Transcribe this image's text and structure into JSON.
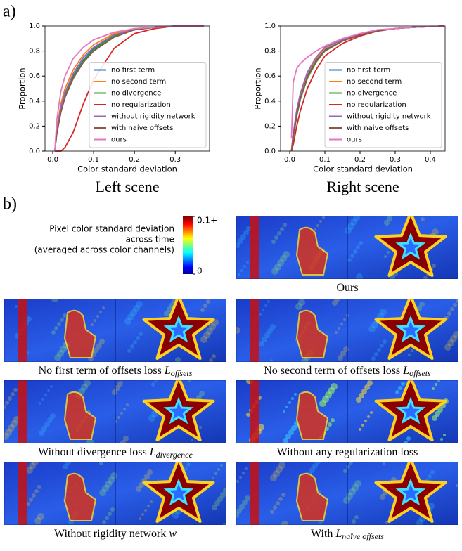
{
  "panel_a": {
    "label": "a)"
  },
  "chart_data": [
    {
      "type": "line",
      "caption": "Left scene",
      "xlabel": "Color standard deviation",
      "ylabel": "Proportion",
      "xlim": [
        -0.019,
        0.384
      ],
      "ylim": [
        0,
        1
      ],
      "xticks": [
        {
          "value": 0,
          "label": "0.0"
        },
        0.1,
        0.2,
        0.3
      ],
      "yticks": [
        {
          "value": 0,
          "label": "0.0"
        },
        0.2,
        0.4,
        0.6,
        0.8,
        {
          "value": 1,
          "label": "1.0"
        }
      ],
      "legend": "lower right",
      "x": [
        0.005,
        0.01,
        0.02,
        0.03,
        0.05,
        0.075,
        0.1,
        0.15,
        0.2,
        0.25,
        0.3,
        0.37
      ],
      "series": [
        {
          "name": "no first term",
          "color": "#1f77b4",
          "values": [
            0,
            0.15,
            0.33,
            0.45,
            0.6,
            0.73,
            0.82,
            0.92,
            0.97,
            0.99,
            1.0,
            1.0
          ]
        },
        {
          "name": "no second term",
          "color": "#ff7f0e",
          "values": [
            0,
            0.18,
            0.38,
            0.5,
            0.65,
            0.77,
            0.85,
            0.94,
            0.98,
            0.99,
            1.0,
            1.0
          ]
        },
        {
          "name": "no divergence",
          "color": "#2ca02c",
          "values": [
            0,
            0.14,
            0.32,
            0.44,
            0.59,
            0.72,
            0.81,
            0.92,
            0.97,
            0.99,
            1.0,
            1.0
          ]
        },
        {
          "name": "no regularization",
          "color": "#d62728",
          "values": [
            0,
            0,
            0,
            0.03,
            0.15,
            0.38,
            0.57,
            0.82,
            0.94,
            0.98,
            1.0,
            1.0
          ]
        },
        {
          "name": "without rigidity network",
          "color": "#9467bd",
          "values": [
            0,
            0.16,
            0.35,
            0.47,
            0.62,
            0.75,
            0.83,
            0.93,
            0.97,
            0.99,
            1.0,
            1.0
          ]
        },
        {
          "name": "with naive offsets",
          "color": "#8c564b",
          "values": [
            0,
            0.14,
            0.31,
            0.43,
            0.58,
            0.71,
            0.8,
            0.91,
            0.97,
            0.99,
            1.0,
            1.0
          ]
        },
        {
          "name": "ours",
          "color": "#e377c2",
          "values": [
            0,
            0.25,
            0.48,
            0.6,
            0.74,
            0.83,
            0.89,
            0.95,
            0.98,
            0.99,
            1.0,
            1.0
          ]
        }
      ]
    },
    {
      "type": "line",
      "caption": "Right scene",
      "xlabel": "Color standard deviation",
      "ylabel": "Proportion",
      "xlim": [
        -0.026,
        0.442
      ],
      "ylim": [
        0,
        1
      ],
      "xticks": [
        {
          "value": 0,
          "label": "0.0"
        },
        0.1,
        0.2,
        0.3,
        0.4
      ],
      "yticks": [
        {
          "value": 0,
          "label": "0.0"
        },
        0.2,
        0.4,
        0.6,
        0.8,
        {
          "value": 1,
          "label": "1.0"
        }
      ],
      "legend": "lower right",
      "x": [
        0.005,
        0.01,
        0.02,
        0.03,
        0.05,
        0.075,
        0.1,
        0.15,
        0.2,
        0.25,
        0.3,
        0.35,
        0.44
      ],
      "series": [
        {
          "name": "no first term",
          "color": "#1f77b4",
          "values": [
            0,
            0.12,
            0.3,
            0.43,
            0.6,
            0.73,
            0.81,
            0.88,
            0.93,
            0.96,
            0.98,
            0.99,
            1.0
          ]
        },
        {
          "name": "no second term",
          "color": "#ff7f0e",
          "values": [
            0,
            0.13,
            0.32,
            0.45,
            0.62,
            0.74,
            0.82,
            0.89,
            0.93,
            0.96,
            0.98,
            0.99,
            1.0
          ]
        },
        {
          "name": "no divergence",
          "color": "#2ca02c",
          "values": [
            0,
            0.1,
            0.28,
            0.41,
            0.58,
            0.71,
            0.8,
            0.88,
            0.93,
            0.96,
            0.98,
            0.99,
            1.0
          ]
        },
        {
          "name": "no regularization",
          "color": "#d62728",
          "values": [
            0,
            0.05,
            0.2,
            0.32,
            0.5,
            0.65,
            0.76,
            0.86,
            0.92,
            0.96,
            0.98,
            0.99,
            1.0
          ]
        },
        {
          "name": "without rigidity network",
          "color": "#9467bd",
          "values": [
            0,
            0.14,
            0.33,
            0.46,
            0.63,
            0.75,
            0.83,
            0.89,
            0.94,
            0.96,
            0.98,
            0.99,
            1.0
          ]
        },
        {
          "name": "with naive offsets",
          "color": "#8c564b",
          "values": [
            0,
            0.11,
            0.29,
            0.42,
            0.59,
            0.72,
            0.8,
            0.88,
            0.93,
            0.96,
            0.98,
            0.99,
            1.0
          ]
        },
        {
          "name": "ours",
          "color": "#e377c2",
          "values": [
            0.1,
            0.55,
            0.66,
            0.7,
            0.75,
            0.8,
            0.84,
            0.9,
            0.94,
            0.97,
            0.98,
            0.99,
            1.0
          ]
        }
      ]
    }
  ],
  "panel_b": {
    "label": "b)",
    "colorbar": {
      "title_lines": [
        "Pixel color standard deviation",
        "across time",
        "(averaged across color channels)"
      ],
      "range": [
        0,
        0.1
      ],
      "ticks": [
        {
          "value": 0.1,
          "label": "0.1+"
        },
        0
      ]
    },
    "images": [
      {
        "caption": {
          "text": "Ours"
        }
      },
      {
        "caption": {
          "text": "No first term of offsets loss ",
          "symbol": "L",
          "sub": "offsets"
        }
      },
      {
        "caption": {
          "text": "No second term of offsets loss ",
          "symbol": "L",
          "sub": "offsets"
        }
      },
      {
        "caption": {
          "text": "Without divergence loss ",
          "symbol": "L",
          "sub": "divergence"
        }
      },
      {
        "caption": {
          "text": "Without any regularization loss"
        }
      },
      {
        "caption": {
          "text": "Without rigidity network ",
          "symbol": "w"
        }
      },
      {
        "caption": {
          "text": "With ",
          "symbol": "L",
          "sub": "naïve offsets"
        }
      }
    ]
  }
}
